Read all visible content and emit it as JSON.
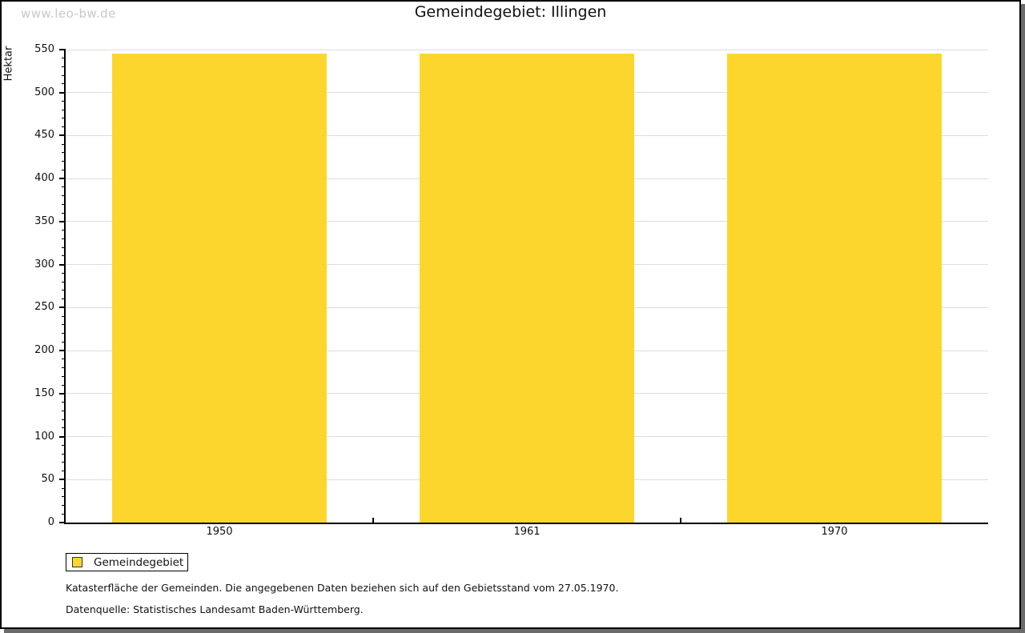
{
  "watermark": "www.leo-bw.de",
  "title": "Gemeindegebiet: Illingen",
  "legend": {
    "label": "Gemeindegebiet",
    "swatch_color": "#FDD62D"
  },
  "footer": {
    "line1": "Katasterfläche der Gemeinden. Die angegebenen Daten beziehen sich auf den Gebietsstand vom 27.05.1970.",
    "line2": "Datenquelle: Statistisches Landesamt Baden-Württemberg."
  },
  "chart_data": {
    "type": "bar",
    "title": "Gemeindegebiet: Illingen",
    "categories": [
      "1950",
      "1961",
      "1970"
    ],
    "series": [
      {
        "name": "Gemeindegebiet",
        "values": [
          545,
          545,
          545
        ]
      }
    ],
    "xlabel": "",
    "ylabel": "Hektar",
    "ylim": [
      0,
      550
    ],
    "yticks": [
      0,
      50,
      100,
      150,
      200,
      250,
      300,
      350,
      400,
      450,
      500,
      550
    ],
    "ytick_minor_step": 10,
    "grid": true,
    "legend_position": "bottom-left",
    "bar_color": "#FDD62D",
    "gridline_color": "#dddddd",
    "axis_color": "#000000"
  }
}
